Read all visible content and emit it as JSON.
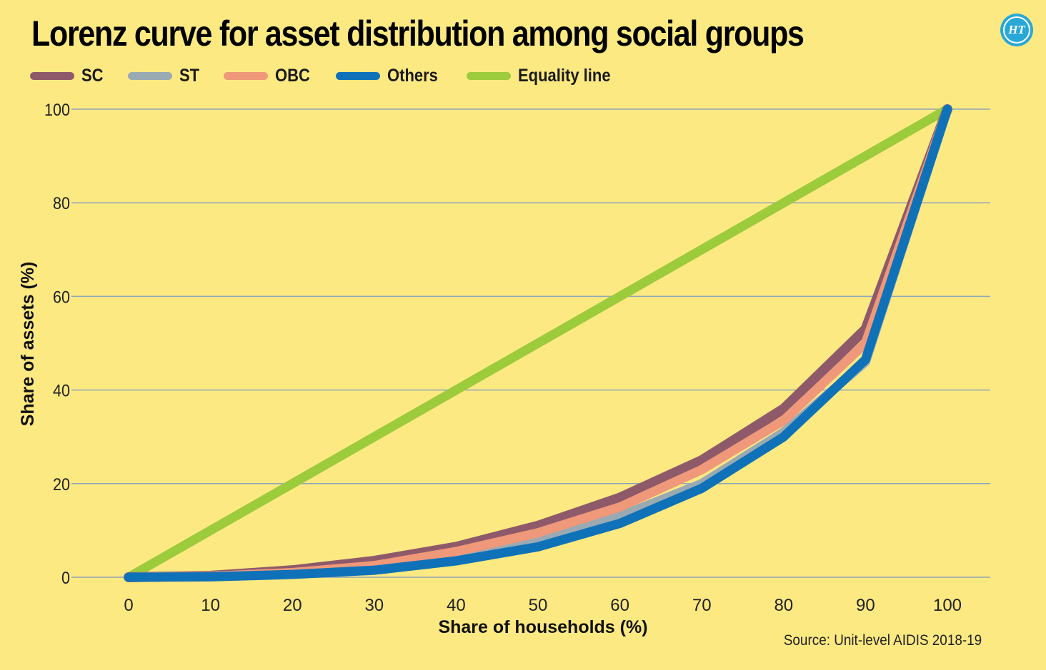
{
  "title": "Lorenz curve for asset distribution among social groups",
  "logo_text": "HT",
  "source": "Source: Unit-level AIDIS 2018-19",
  "colors": {
    "background": "#fde982",
    "gridline": "#8fa6b8",
    "SC": "#8e5a6a",
    "ST": "#9aaab3",
    "OBC": "#f0987a",
    "Others": "#0f72b8",
    "Equality line": "#9ccb3b"
  },
  "chart_data": {
    "type": "line",
    "xlabel": "Share of households (%)",
    "ylabel": "Share of assets (%)",
    "xlim": [
      0,
      100
    ],
    "ylim": [
      0,
      100
    ],
    "x_ticks": [
      0,
      10,
      20,
      30,
      40,
      50,
      60,
      70,
      80,
      90,
      100
    ],
    "y_ticks": [
      0,
      20,
      40,
      60,
      80,
      100
    ],
    "grid": "horizontal",
    "legend_position": "top-left",
    "x": [
      0,
      10,
      20,
      30,
      40,
      50,
      60,
      70,
      80,
      90,
      100
    ],
    "series": [
      {
        "name": "SC",
        "values": [
          0,
          0.3,
          1.5,
          3.5,
          6.5,
          11,
          17,
          25,
          36,
          53,
          100
        ]
      },
      {
        "name": "ST",
        "values": [
          0,
          0.2,
          0.8,
          2,
          4.5,
          8,
          13,
          20,
          31,
          46,
          100
        ]
      },
      {
        "name": "OBC",
        "values": [
          0,
          0.2,
          1,
          2.5,
          5.5,
          9.5,
          15,
          23,
          33.5,
          50,
          100
        ]
      },
      {
        "name": "Others",
        "values": [
          0,
          0.1,
          0.6,
          1.5,
          3.5,
          6.5,
          11.5,
          19,
          30,
          46.5,
          100
        ]
      },
      {
        "name": "Equality line",
        "values": [
          0,
          10,
          20,
          30,
          40,
          50,
          60,
          70,
          80,
          90,
          100
        ]
      }
    ]
  }
}
